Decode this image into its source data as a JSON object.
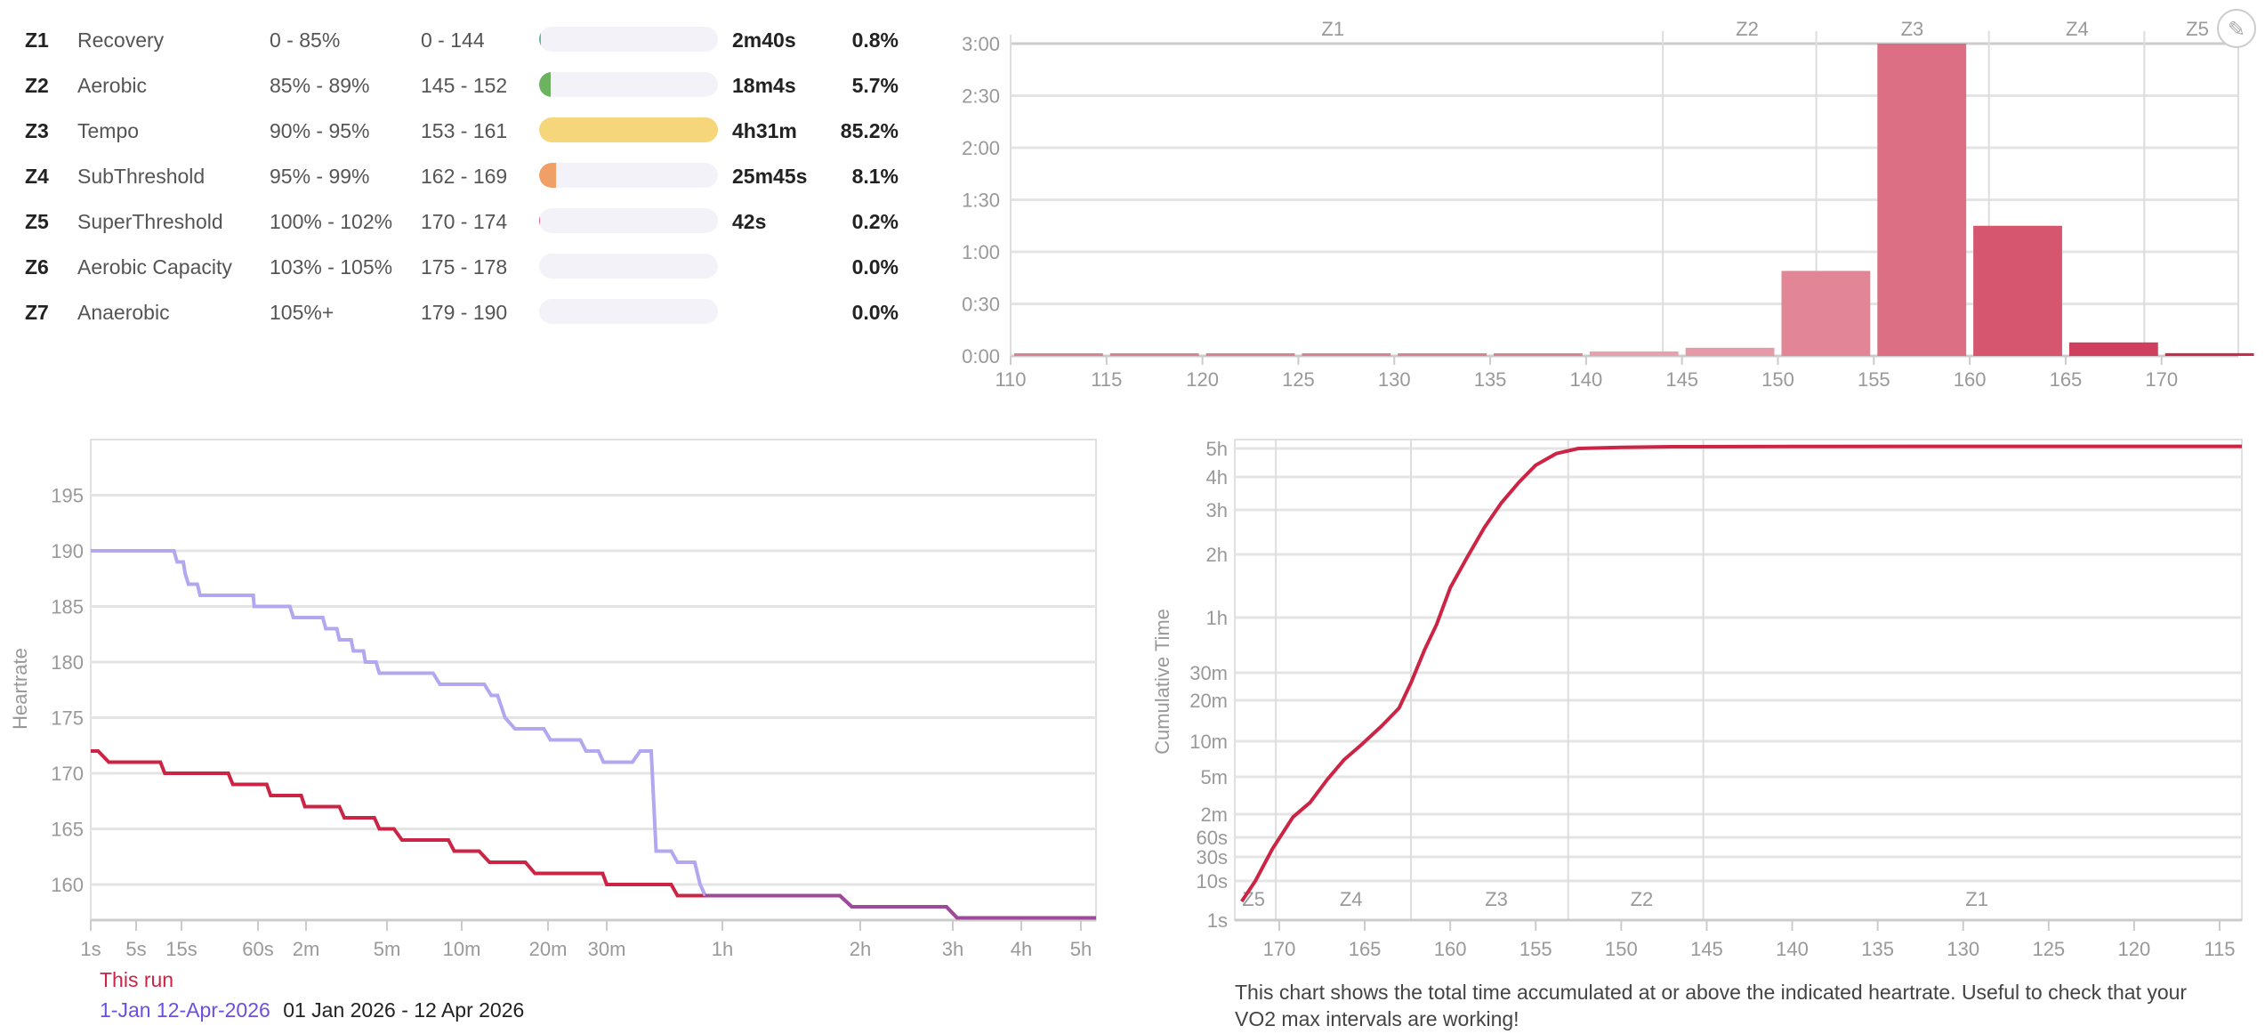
{
  "zones_table": [
    {
      "id": "Z1",
      "name": "Recovery",
      "pct": "0 - 85%",
      "bpm": "0 - 144",
      "time": "2m40s",
      "percent": "0.8%",
      "percent_value": 0.8,
      "color": "#5fb8a0"
    },
    {
      "id": "Z2",
      "name": "Aerobic",
      "pct": "85% - 89%",
      "bpm": "145 - 152",
      "time": "18m4s",
      "percent": "5.7%",
      "percent_value": 5.7,
      "color": "#6db35f"
    },
    {
      "id": "Z3",
      "name": "Tempo",
      "pct": "90% - 95%",
      "bpm": "153 - 161",
      "time": "4h31m",
      "percent": "85.2%",
      "percent_value": 85.2,
      "color": "#f5d67a"
    },
    {
      "id": "Z4",
      "name": "SubThreshold",
      "pct": "95% - 99%",
      "bpm": "162 - 169",
      "time": "25m45s",
      "percent": "8.1%",
      "percent_value": 8.1,
      "color": "#f0a067"
    },
    {
      "id": "Z5",
      "name": "SuperThreshold",
      "pct": "100% - 102%",
      "bpm": "170 - 174",
      "time": "42s",
      "percent": "0.2%",
      "percent_value": 0.2,
      "color": "#e8688a"
    },
    {
      "id": "Z6",
      "name": "Aerobic Capacity",
      "pct": "103% - 105%",
      "bpm": "175 - 178",
      "time": "",
      "percent": "0.0%",
      "percent_value": 0,
      "color": "#d04060"
    },
    {
      "id": "Z7",
      "name": "Anaerobic",
      "pct": "105%+",
      "bpm": "179 - 190",
      "time": "",
      "percent": "0.0%",
      "percent_value": 0,
      "color": "#a02040"
    }
  ],
  "edit_icon": "pencil-icon",
  "chart_data": [
    {
      "type": "bar",
      "title": "",
      "xlabel": "",
      "ylabel": "",
      "xlim": [
        110,
        174
      ],
      "ylim": [
        0,
        180
      ],
      "x_ticks": [
        "110",
        "115",
        "120",
        "125",
        "130",
        "135",
        "140",
        "145",
        "150",
        "155",
        "160",
        "165",
        "170"
      ],
      "y_ticks": [
        {
          "v": 0,
          "label": "0:00"
        },
        {
          "v": 30,
          "label": "0:30"
        },
        {
          "v": 60,
          "label": "1:00"
        },
        {
          "v": 90,
          "label": "1:30"
        },
        {
          "v": 120,
          "label": "2:00"
        },
        {
          "v": 150,
          "label": "2:30"
        },
        {
          "v": 180,
          "label": "3:00"
        }
      ],
      "bins": [
        {
          "start": 110,
          "minutes": 0.5,
          "color": "#d98294"
        },
        {
          "start": 115,
          "minutes": 0.5,
          "color": "#d98294"
        },
        {
          "start": 120,
          "minutes": 0.5,
          "color": "#d98294"
        },
        {
          "start": 125,
          "minutes": 0.5,
          "color": "#d98294"
        },
        {
          "start": 130,
          "minutes": 0.5,
          "color": "#d98294"
        },
        {
          "start": 135,
          "minutes": 0.5,
          "color": "#d98294"
        },
        {
          "start": 140,
          "minutes": 2.6,
          "color": "#e6a0ae"
        },
        {
          "start": 145,
          "minutes": 4.7,
          "color": "#e59aa8"
        },
        {
          "start": 150,
          "minutes": 49,
          "color": "#e28596"
        },
        {
          "start": 155,
          "minutes": 180,
          "color": "#dc6f83"
        },
        {
          "start": 160,
          "minutes": 75,
          "color": "#d5566e"
        },
        {
          "start": 165,
          "minutes": 7.8,
          "color": "#cf3f5e"
        },
        {
          "start": 170,
          "minutes": 1.6,
          "color": "#cc2a4b"
        }
      ],
      "zone_lines": [
        144,
        152,
        161,
        169.1
      ],
      "zone_labels": [
        {
          "label": "Z1",
          "x": 126.8
        },
        {
          "label": "Z2",
          "x": 148.4
        },
        {
          "label": "Z3",
          "x": 157
        },
        {
          "label": "Z4",
          "x": 165.6
        },
        {
          "label": "Z5",
          "x": 172.1
        }
      ]
    },
    {
      "type": "line",
      "title": "",
      "xlabel": "",
      "ylabel": "Heartrate",
      "x_scale": "log",
      "xlim": [
        1,
        20800
      ],
      "ylim": [
        156.8,
        200
      ],
      "x_ticks": [
        {
          "v": 1,
          "label": "1s"
        },
        {
          "v": 5,
          "label": "5s"
        },
        {
          "v": 15,
          "label": "15s"
        },
        {
          "v": 60,
          "label": "60s"
        },
        {
          "v": 120,
          "label": "2m"
        },
        {
          "v": 300,
          "label": "5m"
        },
        {
          "v": 600,
          "label": "10m"
        },
        {
          "v": 1200,
          "label": "20m"
        },
        {
          "v": 1800,
          "label": "30m"
        },
        {
          "v": 3600,
          "label": "1h"
        },
        {
          "v": 7200,
          "label": "2h"
        },
        {
          "v": 10800,
          "label": "3h"
        },
        {
          "v": 14400,
          "label": "4h"
        },
        {
          "v": 18000,
          "label": "5h"
        }
      ],
      "y_ticks": [
        160,
        165,
        170,
        175,
        180,
        185,
        190,
        195
      ],
      "series": [
        {
          "name": "This run",
          "color": "#cc2444",
          "points": [
            [
              1,
              172
            ],
            [
              1.3,
              172
            ],
            [
              1.9,
              171
            ],
            [
              9,
              171
            ],
            [
              10,
              170
            ],
            [
              35,
              170
            ],
            [
              38,
              169
            ],
            [
              68,
              169
            ],
            [
              72,
              168
            ],
            [
              112,
              168
            ],
            [
              118,
              167
            ],
            [
              175,
              167
            ],
            [
              185,
              166
            ],
            [
              260,
              166
            ],
            [
              275,
              165
            ],
            [
              320,
              165
            ],
            [
              345,
              164
            ],
            [
              530,
              164
            ],
            [
              560,
              163
            ],
            [
              690,
              163
            ],
            [
              750,
              162
            ],
            [
              1000,
              162
            ],
            [
              1080,
              161
            ],
            [
              1750,
              161
            ],
            [
              1800,
              160
            ],
            [
              2650,
              160
            ],
            [
              2750,
              159
            ],
            [
              6500,
              159
            ],
            [
              6900,
              158
            ],
            [
              10500,
              158
            ],
            [
              11000,
              157
            ],
            [
              20800,
              157
            ]
          ]
        },
        {
          "name": "1-Jan 12-Apr-2026",
          "subtitle": "01 Jan 2026 - 12 Apr 2026",
          "color": "#b3a8f0",
          "overlap_color": "#9c4a9a",
          "points": [
            [
              1,
              190
            ],
            [
              12.5,
              190
            ],
            [
              13.5,
              189
            ],
            [
              15.5,
              189
            ],
            [
              16,
              188
            ],
            [
              17,
              187
            ],
            [
              20,
              187
            ],
            [
              21,
              186
            ],
            [
              55,
              186
            ],
            [
              56,
              185
            ],
            [
              95,
              185
            ],
            [
              100,
              184
            ],
            [
              145,
              184
            ],
            [
              150,
              183
            ],
            [
              170,
              183
            ],
            [
              175,
              182
            ],
            [
              200,
              182
            ],
            [
              205,
              181
            ],
            [
              230,
              181
            ],
            [
              235,
              180
            ],
            [
              265,
              180
            ],
            [
              275,
              179
            ],
            [
              460,
              179
            ],
            [
              490,
              178
            ],
            [
              720,
              178
            ],
            [
              760,
              177
            ],
            [
              800,
              177
            ],
            [
              850,
              175
            ],
            [
              920,
              174
            ],
            [
              1160,
              174
            ],
            [
              1220,
              173
            ],
            [
              1500,
              173
            ],
            [
              1560,
              172
            ],
            [
              1700,
              172
            ],
            [
              1760,
              171
            ],
            [
              2100,
              171
            ],
            [
              2200,
              172
            ],
            [
              2350,
              172
            ],
            [
              2420,
              163
            ],
            [
              2650,
              163
            ],
            [
              2750,
              162
            ],
            [
              3050,
              162
            ],
            [
              3150,
              160
            ],
            [
              3250,
              159
            ],
            [
              6500,
              159
            ],
            [
              6900,
              158
            ],
            [
              10500,
              158
            ],
            [
              11000,
              157
            ],
            [
              20800,
              157
            ]
          ],
          "overlap_from": 3250
        }
      ]
    },
    {
      "type": "line",
      "title": "",
      "xlabel": "",
      "ylabel": "Cumulative Time",
      "x_reversed": true,
      "xlim": [
        172.6,
        113.7
      ],
      "y_scale": "log",
      "ylim": [
        1,
        23000
      ],
      "x_ticks": [
        170,
        165,
        160,
        155,
        150,
        145,
        140,
        135,
        130,
        125,
        120,
        115
      ],
      "y_ticks": [
        {
          "v": 1,
          "label": "1s"
        },
        {
          "v": 10,
          "label": "10s"
        },
        {
          "v": 30,
          "label": "30s"
        },
        {
          "v": 60,
          "label": "60s"
        },
        {
          "v": 120,
          "label": "2m"
        },
        {
          "v": 300,
          "label": "5m"
        },
        {
          "v": 600,
          "label": "10m"
        },
        {
          "v": 1200,
          "label": "20m"
        },
        {
          "v": 1800,
          "label": "30m"
        },
        {
          "v": 3600,
          "label": "1h"
        },
        {
          "v": 7200,
          "label": "2h"
        },
        {
          "v": 10800,
          "label": "3h"
        },
        {
          "v": 14400,
          "label": "4h"
        },
        {
          "v": 18000,
          "label": "5h"
        }
      ],
      "series": [
        {
          "name": "cumulative",
          "color": "#cc2444",
          "points": [
            [
              172.2,
              3
            ],
            [
              171.4,
              10
            ],
            [
              170.4,
              40
            ],
            [
              169.2,
              110
            ],
            [
              168.2,
              160
            ],
            [
              167.2,
              280
            ],
            [
              166.2,
              420
            ],
            [
              165.2,
              560
            ],
            [
              164,
              780
            ],
            [
              163,
              1050
            ],
            [
              162.3,
              1550
            ],
            [
              161.5,
              2400
            ],
            [
              160.8,
              3300
            ],
            [
              160,
              5000
            ],
            [
              159,
              7000
            ],
            [
              158,
              9200
            ],
            [
              157,
              11500
            ],
            [
              156,
              13700
            ],
            [
              155,
              15800
            ],
            [
              153.8,
              17300
            ],
            [
              152.5,
              18000
            ],
            [
              150,
              18600
            ],
            [
              147,
              18900
            ],
            [
              140,
              19050
            ],
            [
              130,
              19100
            ],
            [
              113.7,
              19100
            ]
          ]
        }
      ],
      "zone_lines": [
        170.2,
        162.3,
        153.1,
        145.2
      ],
      "zone_labels": [
        {
          "label": "Z5",
          "x": 171.5
        },
        {
          "label": "Z4",
          "x": 165.8
        },
        {
          "label": "Z3",
          "x": 157.3
        },
        {
          "label": "Z2",
          "x": 148.8
        },
        {
          "label": "Z1",
          "x": 129.2
        }
      ],
      "caption": "This chart shows the total time accumulated at or above the indicated heartrate. Useful to check that your VO2 max intervals are working!"
    }
  ]
}
